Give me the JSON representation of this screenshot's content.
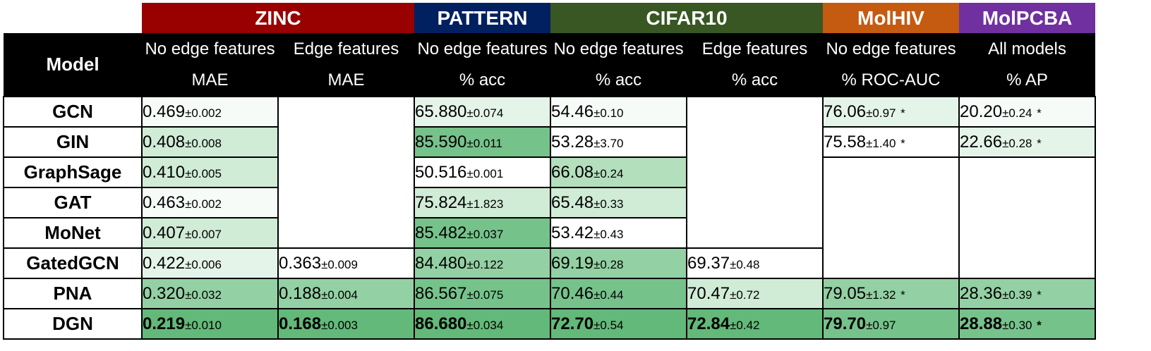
{
  "colors": {
    "ZINC": "#990000",
    "PATTERN": "#002060",
    "CIFAR10": "#385723",
    "MolHIV": "#c55a11",
    "MolPCBA": "#7030a0",
    "header_bg": "#000000"
  },
  "datasets": [
    {
      "name": "ZINC"
    },
    {
      "name": "PATTERN"
    },
    {
      "name": "CIFAR10"
    },
    {
      "name": "MolHIV"
    },
    {
      "name": "MolPCBA"
    }
  ],
  "header": {
    "model_label": "Model",
    "columns": [
      {
        "sub": "No edge features",
        "metric": "MAE"
      },
      {
        "sub": "Edge features",
        "metric": "MAE"
      },
      {
        "sub": "No edge features",
        "metric": "% acc"
      },
      {
        "sub": "No edge features",
        "metric": "% acc"
      },
      {
        "sub": "Edge features",
        "metric": "% acc"
      },
      {
        "sub": "No edge features",
        "metric": "% ROC-AUC"
      },
      {
        "sub": "All models",
        "metric": "% AP"
      }
    ]
  },
  "rows": [
    {
      "model": "GCN",
      "cells": [
        {
          "v": "0.469",
          "pm": "±0.002"
        },
        null,
        {
          "v": "65.880",
          "pm": "±0.074"
        },
        {
          "v": "54.46",
          "pm": "±0.10"
        },
        null,
        {
          "v": "76.06",
          "pm": "±0.97",
          "star": "*"
        },
        {
          "v": "20.20",
          "pm": "±0.24",
          "star": "*"
        }
      ]
    },
    {
      "model": "GIN",
      "cells": [
        {
          "v": "0.408",
          "pm": "±0.008"
        },
        null,
        {
          "v": "85.590",
          "pm": "±0.011"
        },
        {
          "v": "53.28",
          "pm": "±3.70"
        },
        null,
        {
          "v": "75.58",
          "pm": "±1.40",
          "star": "*"
        },
        {
          "v": "22.66",
          "pm": "±0.28",
          "star": "*"
        }
      ]
    },
    {
      "model": "GraphSage",
      "cells": [
        {
          "v": "0.410",
          "pm": "±0.005"
        },
        null,
        {
          "v": "50.516",
          "pm": "±0.001"
        },
        {
          "v": "66.08",
          "pm": "±0.24"
        },
        null,
        null,
        null
      ]
    },
    {
      "model": "GAT",
      "cells": [
        {
          "v": "0.463",
          "pm": "±0.002"
        },
        null,
        {
          "v": "75.824",
          "pm": "±1.823"
        },
        {
          "v": "65.48",
          "pm": "±0.33"
        },
        null,
        null,
        null
      ]
    },
    {
      "model": "MoNet",
      "cells": [
        {
          "v": "0.407",
          "pm": "±0.007"
        },
        null,
        {
          "v": "85.482",
          "pm": "±0.037"
        },
        {
          "v": "53.42",
          "pm": "±0.43"
        },
        null,
        null,
        null
      ]
    },
    {
      "model": "GatedGCN",
      "cells": [
        {
          "v": "0.422",
          "pm": "±0.006"
        },
        {
          "v": "0.363",
          "pm": "±0.009"
        },
        {
          "v": "84.480",
          "pm": "±0.122"
        },
        {
          "v": "69.19",
          "pm": "±0.28"
        },
        {
          "v": "69.37",
          "pm": "±0.48"
        },
        null,
        null
      ]
    },
    {
      "model": "PNA",
      "cells": [
        {
          "v": "0.320",
          "pm": "±0.032"
        },
        {
          "v": "0.188",
          "pm": "±0.004"
        },
        {
          "v": "86.567",
          "pm": "±0.075"
        },
        {
          "v": "70.46",
          "pm": "±0.44"
        },
        {
          "v": "70.47",
          "pm": "±0.72"
        },
        {
          "v": "79.05",
          "pm": "±1.32",
          "star": "*"
        },
        {
          "v": "28.36",
          "pm": "±0.39",
          "star": "*"
        }
      ]
    },
    {
      "model": "DGN",
      "cells": [
        {
          "v": "0.219",
          "pm": "±0.010"
        },
        {
          "v": "0.168",
          "pm": "±0.003"
        },
        {
          "v": "86.680",
          "pm": "±0.034"
        },
        {
          "v": "72.70",
          "pm": "±0.54"
        },
        {
          "v": "72.84",
          "pm": "±0.42"
        },
        {
          "v": "79.70",
          "pm": "±0.97"
        },
        {
          "v": "28.88",
          "pm": "±0.30",
          "star": "*"
        }
      ]
    }
  ]
}
